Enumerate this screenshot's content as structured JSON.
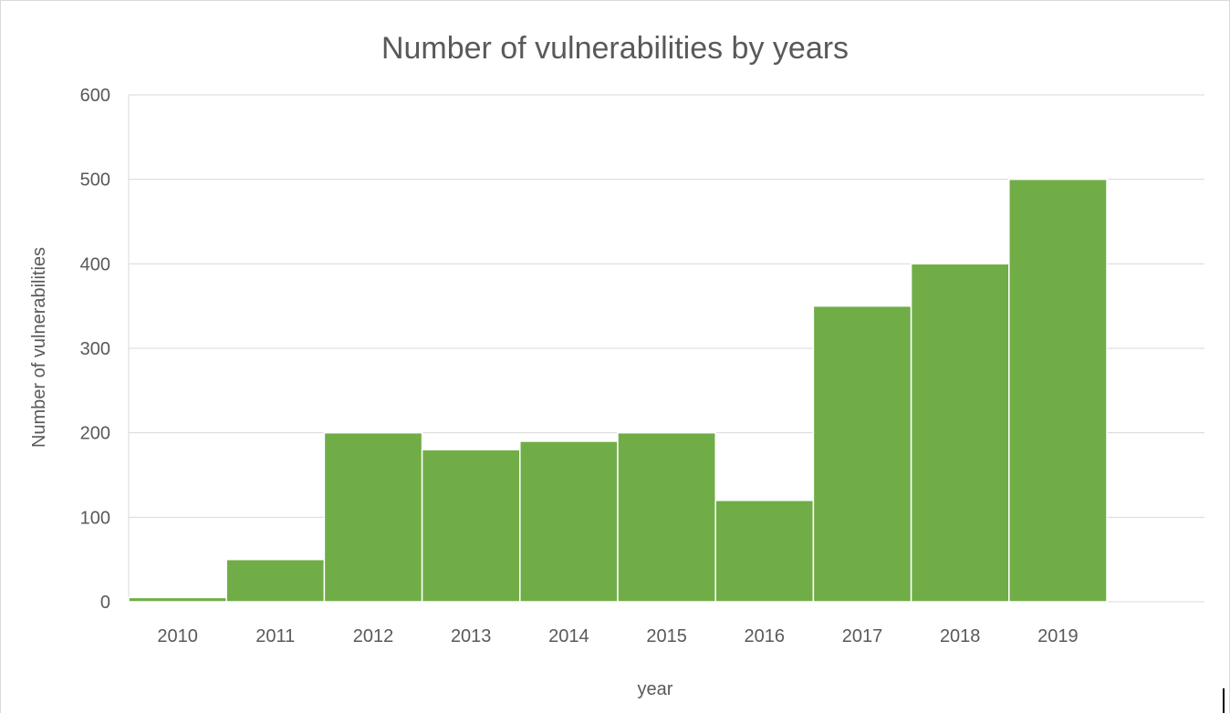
{
  "chart_data": {
    "type": "bar",
    "title": "Number of vulnerabilities by years",
    "xlabel": "year",
    "ylabel": "Number of vulnerabilities",
    "categories": [
      "2010",
      "2011",
      "2012",
      "2013",
      "2014",
      "2015",
      "2016",
      "2017",
      "2018",
      "2019"
    ],
    "values": [
      5,
      50,
      200,
      180,
      190,
      200,
      120,
      350,
      400,
      500
    ],
    "ylim": [
      0,
      600
    ],
    "yticks": [
      "0",
      "100",
      "200",
      "300",
      "400",
      "500",
      "600"
    ],
    "grid": true,
    "legend": "none",
    "bar_color": "#70ad47",
    "gridline_color": "#d9d9d9",
    "text_color": "#595959"
  }
}
